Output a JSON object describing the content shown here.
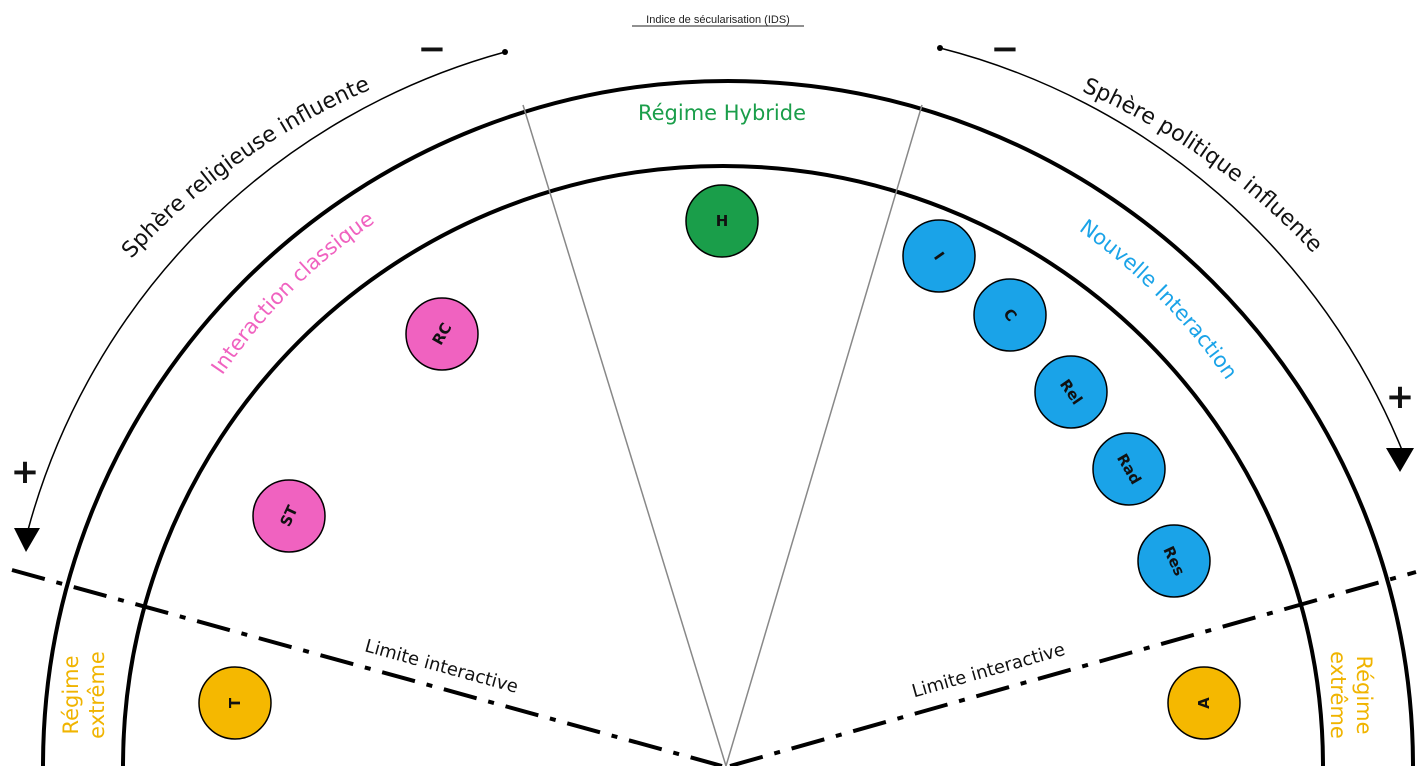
{
  "title": "Indice de sécularisation (IDS)",
  "spheres": {
    "left": "Sphère religieuse influente",
    "right": "Sphère politique influente"
  },
  "regions": {
    "hybrid": "Régime Hybride",
    "classic": "Interaction classique",
    "new": "Nouvelle Interaction",
    "extreme_left_1": "Régime",
    "extreme_left_2": "extrême",
    "extreme_right_1": "Régime",
    "extreme_right_2": "extrême"
  },
  "limits": {
    "left": "Limite interactive",
    "right": "Limite interactive"
  },
  "signs": {
    "left_top": "−",
    "left_bottom": "+",
    "right_top": "−",
    "right_bottom": "+"
  },
  "colors": {
    "hybrid": "#1a9e4a",
    "classic": "#f062c0",
    "new": "#1aa3e8",
    "extreme": "#f5b800",
    "extreme_text": "#f0b400"
  },
  "nodes": [
    {
      "label": "H",
      "group": "hybrid"
    },
    {
      "label": "RC",
      "group": "classic"
    },
    {
      "label": "ST",
      "group": "classic"
    },
    {
      "label": "I",
      "group": "new"
    },
    {
      "label": "C",
      "group": "new"
    },
    {
      "label": "Rel",
      "group": "new"
    },
    {
      "label": "Rad",
      "group": "new"
    },
    {
      "label": "Res",
      "group": "new"
    },
    {
      "label": "T",
      "group": "extreme"
    },
    {
      "label": "A",
      "group": "extreme"
    }
  ]
}
